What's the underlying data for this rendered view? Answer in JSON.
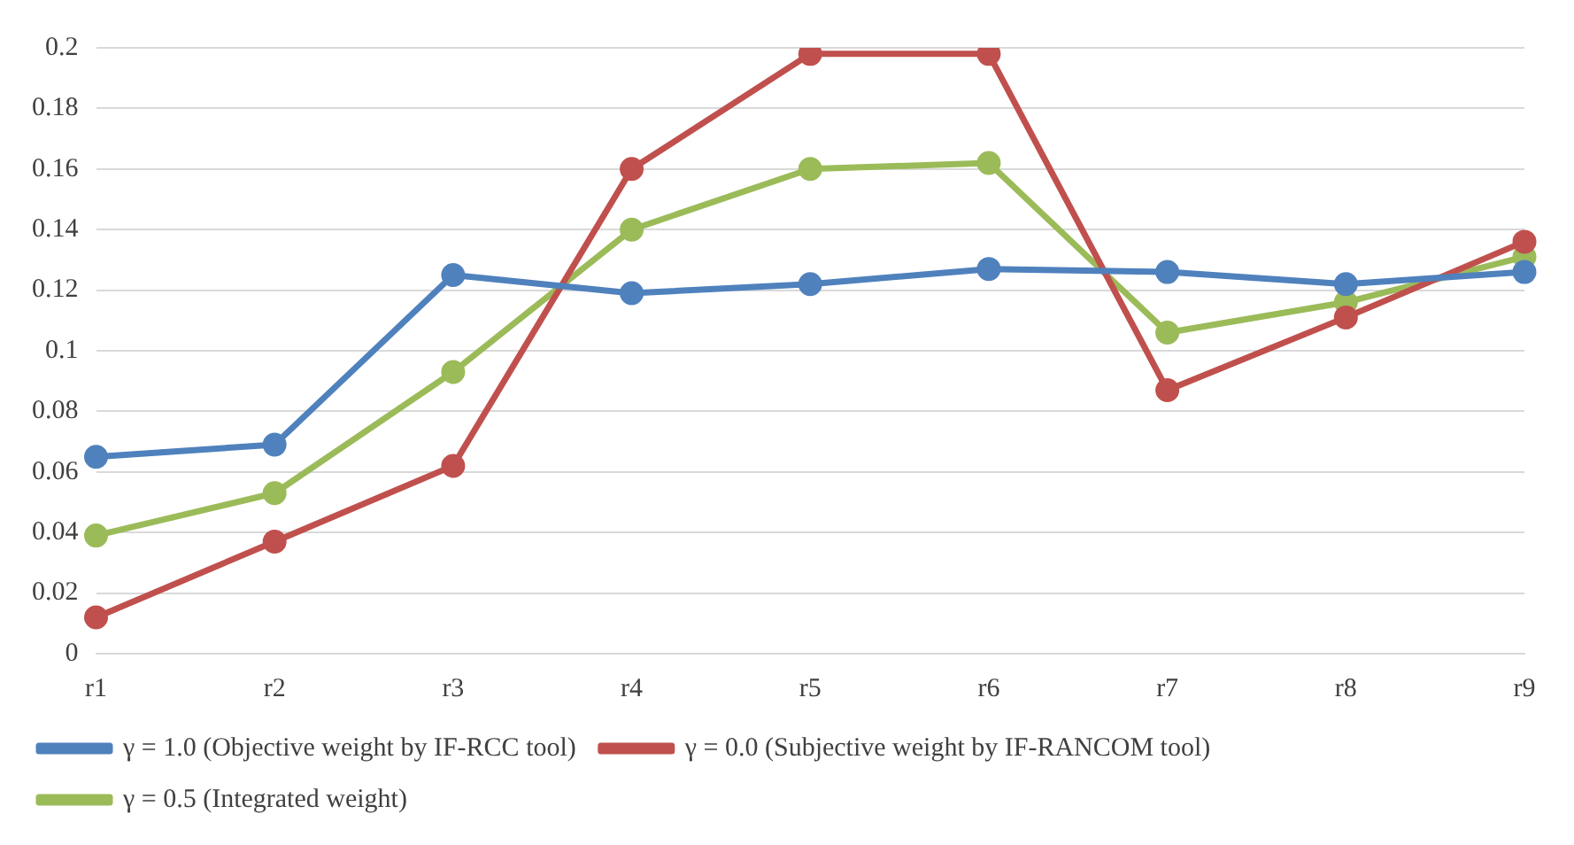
{
  "chart_data": {
    "type": "line",
    "categories": [
      "r1",
      "r2",
      "r3",
      "r4",
      "r5",
      "r6",
      "r7",
      "r8",
      "r9"
    ],
    "series": [
      {
        "name": "γ = 1.0 (Objective weight by IF-RCC tool)",
        "color": "#4f81bd",
        "values": [
          0.065,
          0.069,
          0.125,
          0.119,
          0.122,
          0.127,
          0.126,
          0.122,
          0.126
        ]
      },
      {
        "name": "γ = 0.0 (Subjective weight by IF-RANCOM tool)",
        "color": "#c0504d",
        "values": [
          0.012,
          0.037,
          0.062,
          0.16,
          0.198,
          0.198,
          0.087,
          0.111,
          0.136
        ]
      },
      {
        "name": "γ = 0.5 (Integrated weight)",
        "color": "#9bbb59",
        "values": [
          0.039,
          0.053,
          0.093,
          0.14,
          0.16,
          0.162,
          0.106,
          0.116,
          0.131
        ]
      }
    ],
    "ylim": [
      0,
      0.2
    ],
    "yticks": [
      0,
      0.02,
      0.04,
      0.06,
      0.08,
      0.1,
      0.12,
      0.14,
      0.16,
      0.18,
      0.2
    ],
    "grid": "y",
    "legend": "bottom",
    "marker": "circle",
    "line_style": "solid"
  }
}
